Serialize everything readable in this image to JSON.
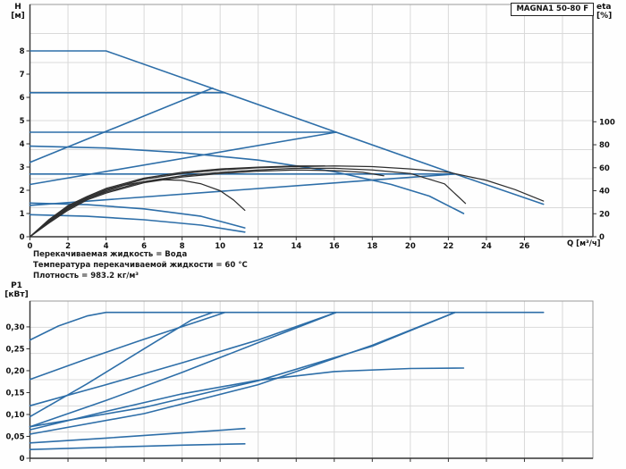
{
  "header": {
    "title_box": "MAGNA1 50-80 F"
  },
  "info_lines": {
    "line1": "Перекачиваемая жидкость = Вода",
    "line2": "Температура перекачиваемой жидкости = 60 °C",
    "line3": "Плотность = 983.2 кг/м³"
  },
  "colors": {
    "blue": "#2d6ea8",
    "dark": "#2e2e2e",
    "grid": "#d9d9d9",
    "frame": "#9a9a9a",
    "axis": "#333333",
    "text": "#111111"
  },
  "chart_data": [
    {
      "type": "line",
      "name": "head-efficiency-chart",
      "title": "MAGNA1 50-80 F",
      "y_left_label_1": "H",
      "y_left_label_2": "[м]",
      "y_right_label_1": "eta",
      "y_right_label_2": "[%]",
      "x_label": "Q [м³/ч]",
      "xlim": [
        0,
        29.6
      ],
      "ylim_left": [
        0,
        10
      ],
      "ylim_right": [
        0,
        202
      ],
      "x_ticks": [
        0,
        2,
        4,
        6,
        8,
        10,
        12,
        14,
        16,
        18,
        20,
        22,
        24,
        26
      ],
      "x_tick_labels": true,
      "y_ticks_left": [
        {
          "v": 8,
          "label": "8"
        },
        {
          "v": 7,
          "label": "7"
        },
        {
          "v": 6,
          "label": "6"
        },
        {
          "v": 5,
          "label": "5"
        },
        {
          "v": 4,
          "label": "4"
        },
        {
          "v": 3,
          "label": "3"
        },
        {
          "v": 2,
          "label": "2"
        },
        {
          "v": 1,
          "label": "1"
        },
        {
          "v": 0,
          "label": "0"
        }
      ],
      "y_ticks_right": [
        {
          "v": 100,
          "label": "100"
        },
        {
          "v": 80,
          "label": "80"
        },
        {
          "v": 60,
          "label": "60"
        },
        {
          "v": 40,
          "label": "40"
        },
        {
          "v": 20,
          "label": "20"
        },
        {
          "v": 0,
          "label": "0"
        }
      ],
      "grid": {
        "x_step": 2,
        "y_divisions": 8
      },
      "legend": "none",
      "series": [
        {
          "name": "max-curve",
          "color": "blue",
          "axis": "left",
          "points": [
            [
              0,
              8
            ],
            [
              4,
              8
            ],
            [
              10,
              6.27
            ],
            [
              16,
              4.53
            ],
            [
              22,
              2.8
            ],
            [
              27,
              1.4
            ]
          ]
        },
        {
          "name": "const-pressure-6.2",
          "color": "blue",
          "axis": "left",
          "points": [
            [
              0,
              6.2
            ],
            [
              10.25,
              6.2
            ]
          ]
        },
        {
          "name": "const-pressure-4.5",
          "color": "blue",
          "axis": "left",
          "points": [
            [
              0,
              4.5
            ],
            [
              16.1,
              4.5
            ]
          ]
        },
        {
          "name": "const-pressure-2.7",
          "color": "blue",
          "axis": "left",
          "points": [
            [
              0,
              2.7
            ],
            [
              22.35,
              2.7
            ]
          ]
        },
        {
          "name": "prop-pressure-6.4",
          "color": "blue",
          "axis": "left",
          "points": [
            [
              0,
              3.2
            ],
            [
              9.6,
              6.4
            ]
          ]
        },
        {
          "name": "prop-pressure-4.5",
          "color": "blue",
          "axis": "left",
          "points": [
            [
              0,
              2.25
            ],
            [
              16.1,
              4.5
            ]
          ]
        },
        {
          "name": "prop-pressure-2.7",
          "color": "blue",
          "axis": "left",
          "points": [
            [
              0,
              1.35
            ],
            [
              22.35,
              2.7
            ]
          ]
        },
        {
          "name": "const-curve-iii",
          "color": "blue",
          "axis": "left",
          "points": [
            [
              0,
              3.9
            ],
            [
              4,
              3.82
            ],
            [
              8,
              3.62
            ],
            [
              12,
              3.3
            ],
            [
              16,
              2.8
            ],
            [
              19,
              2.25
            ],
            [
              21,
              1.75
            ],
            [
              22.8,
              1.0
            ]
          ]
        },
        {
          "name": "const-curve-ii",
          "color": "blue",
          "axis": "left",
          "points": [
            [
              0,
              1.45
            ],
            [
              3,
              1.38
            ],
            [
              6,
              1.2
            ],
            [
              9,
              0.88
            ],
            [
              11.3,
              0.38
            ]
          ]
        },
        {
          "name": "min-curve",
          "color": "blue",
          "axis": "left",
          "points": [
            [
              0,
              0.95
            ],
            [
              3,
              0.88
            ],
            [
              6,
              0.73
            ],
            [
              9,
              0.5
            ],
            [
              11.3,
              0.2
            ]
          ]
        },
        {
          "name": "eta-max",
          "color": "dark",
          "axis": "right",
          "points": [
            [
              0,
              0
            ],
            [
              1,
              14
            ],
            [
              2,
              26
            ],
            [
              3,
              34
            ],
            [
              4,
              41
            ],
            [
              6,
              50
            ],
            [
              8,
              55
            ],
            [
              10,
              58
            ],
            [
              12,
              60
            ],
            [
              14,
              61
            ],
            [
              16,
              61.5
            ],
            [
              18,
              61
            ],
            [
              20,
              59
            ],
            [
              22,
              56
            ],
            [
              24,
              49
            ],
            [
              25.5,
              41
            ],
            [
              27,
              31
            ]
          ]
        },
        {
          "name": "eta-speed-2",
          "color": "dark",
          "axis": "right",
          "points": [
            [
              0,
              0
            ],
            [
              1,
              13
            ],
            [
              2,
              25
            ],
            [
              3,
              33
            ],
            [
              4,
              39
            ],
            [
              6,
              48
            ],
            [
              8,
              53
            ],
            [
              10,
              56
            ],
            [
              12,
              58
            ],
            [
              14,
              59.5
            ],
            [
              16,
              59.5
            ],
            [
              18,
              58
            ],
            [
              20,
              55
            ],
            [
              21.8,
              46
            ],
            [
              22.9,
              29
            ]
          ]
        },
        {
          "name": "eta-speed-3",
          "color": "dark",
          "axis": "right",
          "points": [
            [
              0,
              0
            ],
            [
              1,
              13
            ],
            [
              2,
              24
            ],
            [
              3,
              33
            ],
            [
              4,
              40
            ],
            [
              5,
              45
            ],
            [
              6,
              48
            ],
            [
              7,
              49.5
            ],
            [
              8,
              49
            ],
            [
              9,
              46
            ],
            [
              10,
              40
            ],
            [
              10.7,
              32
            ],
            [
              11.3,
              23
            ]
          ]
        },
        {
          "name": "eta-speed-4",
          "color": "dark",
          "axis": "right",
          "points": [
            [
              0,
              0
            ],
            [
              1,
              12
            ],
            [
              2,
              23
            ],
            [
              3,
              32
            ],
            [
              4,
              38
            ],
            [
              6,
              47
            ],
            [
              8,
              52
            ],
            [
              10,
              55
            ],
            [
              12,
              57
            ],
            [
              14,
              58
            ],
            [
              16,
              57.5
            ],
            [
              17.5,
              56
            ],
            [
              18.6,
              53
            ]
          ]
        },
        {
          "name": "eta-speed-5",
          "color": "dark",
          "axis": "right",
          "points": [
            [
              0,
              0
            ],
            [
              1,
              15
            ],
            [
              2,
              27
            ],
            [
              3,
              35
            ],
            [
              4,
              42
            ],
            [
              6,
              51
            ],
            [
              8,
              56
            ],
            [
              10,
              59
            ],
            [
              12,
              60.5
            ],
            [
              14,
              61.5
            ],
            [
              15.5,
              61.5
            ]
          ]
        }
      ]
    },
    {
      "type": "line",
      "name": "power-chart",
      "y_left_label_1": "P1",
      "y_left_label_2": "[кВт]",
      "x_label": "",
      "xlim": [
        0,
        29.6
      ],
      "ylim_left": [
        0,
        0.359
      ],
      "x_ticks": [
        0,
        2,
        4,
        6,
        8,
        10,
        12,
        14,
        16,
        18,
        20,
        22,
        24,
        26,
        28
      ],
      "x_tick_labels": false,
      "y_ticks_left": [
        {
          "v": 0.3,
          "label": "0,30"
        },
        {
          "v": 0.25,
          "label": "0,25"
        },
        {
          "v": 0.2,
          "label": "0,20"
        },
        {
          "v": 0.15,
          "label": "0,15"
        },
        {
          "v": 0.1,
          "label": "0,10"
        },
        {
          "v": 0.05,
          "label": "0,05"
        },
        {
          "v": 0,
          "label": "0"
        }
      ],
      "y_ticks_right": [],
      "grid": {
        "x_step": 2,
        "y_divisions": 6
      },
      "legend": "none",
      "series": [
        {
          "name": "power-max",
          "color": "blue",
          "axis": "left",
          "points": [
            [
              0,
              0.27
            ],
            [
              1.5,
              0.302
            ],
            [
              3,
              0.325
            ],
            [
              4,
              0.333
            ],
            [
              27,
              0.333
            ]
          ]
        },
        {
          "name": "power-cp-6.2",
          "color": "blue",
          "axis": "left",
          "points": [
            [
              0,
              0.18
            ],
            [
              3,
              0.227
            ],
            [
              6,
              0.272
            ],
            [
              9,
              0.315
            ],
            [
              10.25,
              0.333
            ]
          ]
        },
        {
          "name": "power-pp-6.4",
          "color": "blue",
          "axis": "left",
          "points": [
            [
              0,
              0.095
            ],
            [
              3,
              0.17
            ],
            [
              6,
              0.25
            ],
            [
              8.5,
              0.316
            ],
            [
              9.6,
              0.333
            ]
          ]
        },
        {
          "name": "power-cp-4.5",
          "color": "blue",
          "axis": "left",
          "points": [
            [
              0,
              0.12
            ],
            [
              4,
              0.168
            ],
            [
              8,
              0.218
            ],
            [
              12,
              0.27
            ],
            [
              16.1,
              0.333
            ]
          ]
        },
        {
          "name": "power-pp-4.5",
          "color": "blue",
          "axis": "left",
          "points": [
            [
              0,
              0.072
            ],
            [
              4,
              0.132
            ],
            [
              8,
              0.196
            ],
            [
              12,
              0.264
            ],
            [
              16.1,
              0.333
            ]
          ]
        },
        {
          "name": "power-cp-2.7",
          "color": "blue",
          "axis": "left",
          "points": [
            [
              0,
              0.072
            ],
            [
              6,
              0.116
            ],
            [
              12,
              0.177
            ],
            [
              18,
              0.256
            ],
            [
              22.35,
              0.333
            ]
          ]
        },
        {
          "name": "power-pp-2.7",
          "color": "blue",
          "axis": "left",
          "points": [
            [
              0,
              0.055
            ],
            [
              6,
              0.102
            ],
            [
              12,
              0.168
            ],
            [
              18,
              0.258
            ],
            [
              22.35,
              0.333
            ]
          ]
        },
        {
          "name": "power-cc-iii",
          "color": "blue",
          "axis": "left",
          "points": [
            [
              0,
              0.065
            ],
            [
              4,
              0.107
            ],
            [
              8,
              0.147
            ],
            [
              12,
              0.178
            ],
            [
              16,
              0.198
            ],
            [
              20,
              0.205
            ],
            [
              22.8,
              0.206
            ]
          ]
        },
        {
          "name": "power-cc-ii",
          "color": "blue",
          "axis": "left",
          "points": [
            [
              0,
              0.035
            ],
            [
              4,
              0.046
            ],
            [
              8,
              0.058
            ],
            [
              11.3,
              0.068
            ]
          ]
        },
        {
          "name": "power-min",
          "color": "blue",
          "axis": "left",
          "points": [
            [
              0,
              0.02
            ],
            [
              4,
              0.025
            ],
            [
              8,
              0.03
            ],
            [
              11.3,
              0.033
            ]
          ]
        }
      ]
    }
  ]
}
